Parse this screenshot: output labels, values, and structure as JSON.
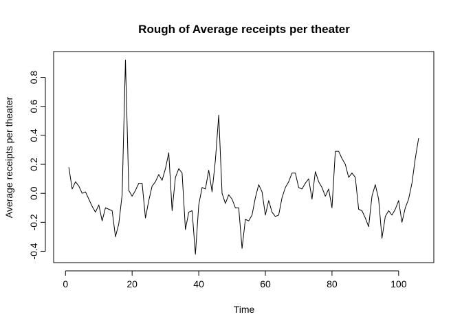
{
  "chart_data": {
    "type": "line",
    "title": "Rough of Average receipts per theater",
    "xlabel": "Time",
    "ylabel": "Average receipts per theater",
    "xlim": [
      1,
      106
    ],
    "ylim": [
      -0.42,
      0.92
    ],
    "xticks": [
      0,
      20,
      40,
      60,
      80,
      100
    ],
    "yticks": [
      -0.4,
      -0.2,
      0.0,
      0.2,
      0.4,
      0.6,
      0.8
    ],
    "xtick_labels": [
      "0",
      "20",
      "40",
      "60",
      "80",
      "100"
    ],
    "ytick_labels": [
      "-0.4",
      "-0.2",
      "0.0",
      "0.2",
      "0.4",
      "0.6",
      "0.8"
    ],
    "grid": false,
    "legend": "none",
    "series": [
      {
        "values": [
          0.18,
          0.03,
          0.08,
          0.05,
          0.0,
          0.01,
          -0.04,
          -0.09,
          -0.13,
          -0.08,
          -0.19,
          -0.1,
          -0.11,
          -0.12,
          -0.3,
          -0.21,
          -0.01,
          0.92,
          0.02,
          -0.02,
          0.02,
          0.07,
          0.07,
          -0.17,
          -0.05,
          0.05,
          0.08,
          0.13,
          0.09,
          0.17,
          0.28,
          -0.12,
          0.11,
          0.17,
          0.14,
          -0.25,
          -0.13,
          -0.12,
          -0.42,
          -0.08,
          0.04,
          0.03,
          0.16,
          0.01,
          0.23,
          0.54,
          0.0,
          -0.07,
          -0.01,
          -0.04,
          -0.1,
          -0.1,
          -0.38,
          -0.18,
          -0.19,
          -0.15,
          -0.03,
          0.06,
          0.01,
          -0.15,
          -0.05,
          -0.13,
          -0.16,
          -0.15,
          -0.03,
          0.04,
          0.08,
          0.14,
          0.14,
          0.04,
          0.03,
          0.07,
          0.1,
          -0.04,
          0.15,
          0.08,
          0.04,
          -0.02,
          0.03,
          -0.1,
          0.29,
          0.29,
          0.24,
          0.2,
          0.11,
          0.14,
          0.11,
          -0.11,
          -0.12,
          -0.17,
          -0.23,
          -0.02,
          0.06,
          -0.04,
          -0.31,
          -0.16,
          -0.12,
          -0.15,
          -0.11,
          -0.05,
          -0.2,
          -0.1,
          -0.04,
          0.07,
          0.24,
          0.38
        ]
      }
    ]
  }
}
